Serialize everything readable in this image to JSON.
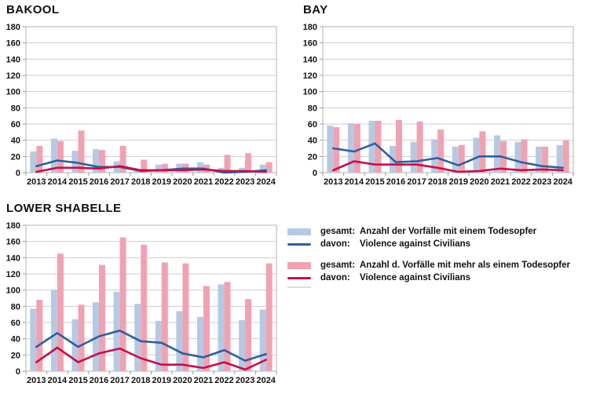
{
  "colors": {
    "bar_single": "#B7C9E2",
    "line_single": "#2D5F9E",
    "bar_multi": "#F1A2B2",
    "line_multi": "#C50F49",
    "grid": "#CDCDCD",
    "plot_border": "#B3B3B3",
    "tick": "#9A9A9A",
    "text": "#111111",
    "background": "#FFFFFF"
  },
  "chart_data": [
    {
      "type": "bar",
      "title": "BAKOOL",
      "categories": [
        "2013",
        "2014",
        "2015",
        "2016",
        "2017",
        "2018",
        "2019",
        "2020",
        "2021",
        "2022",
        "2023",
        "2024"
      ],
      "ylim": [
        0,
        180
      ],
      "ytick_step": 20,
      "grid": true,
      "legend_position": "none",
      "series": [
        {
          "name": "gesamt: Anzahl der Vorfälle mit einem Todesopfer",
          "kind": "bar",
          "color": "#B7C9E2",
          "values": [
            26,
            42,
            27,
            29,
            14,
            2,
            10,
            11,
            13,
            6,
            6,
            10
          ]
        },
        {
          "name": "davon: Violence against Civilians",
          "kind": "line",
          "color": "#2D5F9E",
          "values": [
            8,
            15,
            12,
            7,
            7,
            2,
            3,
            5,
            5,
            0,
            1,
            3
          ]
        },
        {
          "name": "gesamt: Anzahl d. Vorfälle mit mehr als einem Todesopfer",
          "kind": "bar",
          "color": "#F1A2B2",
          "values": [
            33,
            39,
            52,
            28,
            33,
            16,
            11,
            11,
            10,
            22,
            24,
            13
          ]
        },
        {
          "name": "davon: Violence against Civilians",
          "kind": "line",
          "color": "#C50F49",
          "values": [
            1,
            6,
            6,
            5,
            8,
            3,
            3,
            3,
            4,
            2,
            2,
            1
          ]
        }
      ]
    },
    {
      "type": "bar",
      "title": "BAY",
      "categories": [
        "2013",
        "2014",
        "2015",
        "2016",
        "2017",
        "2018",
        "2019",
        "2020",
        "2021",
        "2022",
        "2023",
        "2024"
      ],
      "ylim": [
        0,
        180
      ],
      "ytick_step": 20,
      "grid": true,
      "legend_position": "none",
      "series": [
        {
          "name": "gesamt: Anzahl der Vorfälle mit einem Todesopfer",
          "kind": "bar",
          "color": "#B7C9E2",
          "values": [
            58,
            61,
            64,
            33,
            38,
            41,
            32,
            43,
            46,
            38,
            32,
            34
          ]
        },
        {
          "name": "davon: Violence against Civilians",
          "kind": "line",
          "color": "#2D5F9E",
          "values": [
            30,
            26,
            36,
            13,
            14,
            18,
            9,
            20,
            20,
            13,
            8,
            6
          ]
        },
        {
          "name": "gesamt: Anzahl d. Vorfälle mit mehr als einem Todesopfer",
          "kind": "bar",
          "color": "#F1A2B2",
          "values": [
            56,
            60,
            64,
            65,
            63,
            53,
            34,
            51,
            39,
            41,
            32,
            40
          ]
        },
        {
          "name": "davon: Violence against Civilians",
          "kind": "line",
          "color": "#C50F49",
          "values": [
            3,
            14,
            10,
            10,
            10,
            6,
            1,
            2,
            5,
            3,
            4,
            3
          ]
        }
      ]
    },
    {
      "type": "bar",
      "title": "LOWER SHABELLE",
      "categories": [
        "2013",
        "2014",
        "2015",
        "2016",
        "2017",
        "2018",
        "2019",
        "2020",
        "2021",
        "2022",
        "2023",
        "2024"
      ],
      "ylim": [
        0,
        180
      ],
      "ytick_step": 20,
      "grid": true,
      "legend_position": "none",
      "series": [
        {
          "name": "gesamt: Anzahl der Vorfälle mit einem Todesopfer",
          "kind": "bar",
          "color": "#B7C9E2",
          "values": [
            77,
            100,
            64,
            85,
            98,
            83,
            62,
            74,
            67,
            107,
            63,
            76
          ]
        },
        {
          "name": "davon: Violence against Civilians",
          "kind": "line",
          "color": "#2D5F9E",
          "values": [
            30,
            47,
            30,
            43,
            50,
            37,
            35,
            22,
            17,
            26,
            13,
            21
          ]
        },
        {
          "name": "gesamt: Anzahl d. Vorfälle mit mehr als einem Todesopfer",
          "kind": "bar",
          "color": "#F1A2B2",
          "values": [
            88,
            145,
            82,
            131,
            165,
            156,
            134,
            133,
            105,
            110,
            89,
            133
          ]
        },
        {
          "name": "davon: Violence against Civilians",
          "kind": "line",
          "color": "#C50F49",
          "values": [
            11,
            29,
            11,
            22,
            28,
            16,
            8,
            8,
            4,
            11,
            2,
            14
          ]
        }
      ]
    }
  ],
  "legend": {
    "items": [
      {
        "swatch": "bar",
        "color": "#B7C9E2",
        "prefix": "gesamt:",
        "label": "Anzahl der Vorfälle mit einem Todesopfer"
      },
      {
        "swatch": "line",
        "color": "#2D5F9E",
        "prefix": "davon:",
        "label": "Violence against Civilians"
      },
      {
        "swatch": "bar",
        "color": "#F1A2B2",
        "prefix": "gesamt:",
        "label": "Anzahl d. Vorfälle mit mehr als einem Todesopfer"
      },
      {
        "swatch": "line",
        "color": "#C50F49",
        "prefix": "davon:",
        "label": "Violence against Civilians"
      }
    ]
  }
}
